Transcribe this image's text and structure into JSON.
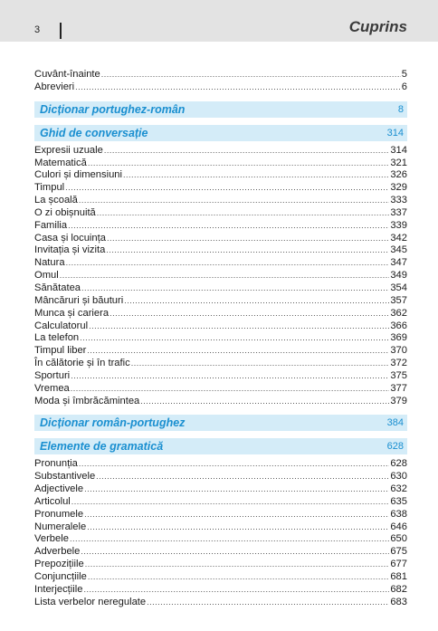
{
  "header": {
    "page_number": "3",
    "title": "Cuprins"
  },
  "toc": [
    {
      "type": "entry",
      "title": "Cuvânt-înainte",
      "page": "5"
    },
    {
      "type": "entry",
      "title": "Abrevieri",
      "page": "6"
    },
    {
      "type": "section",
      "title": "Dicționar portughez-român",
      "page": "8"
    },
    {
      "type": "section",
      "title": "Ghid de conversație",
      "page": "314"
    },
    {
      "type": "entry",
      "title": "Expresii uzuale",
      "page": "314"
    },
    {
      "type": "entry",
      "title": "Matematică",
      "page": "321"
    },
    {
      "type": "entry",
      "title": "Culori și dimensiuni",
      "page": "326"
    },
    {
      "type": "entry",
      "title": "Timpul",
      "page": "329"
    },
    {
      "type": "entry",
      "title": "La școală",
      "page": "333"
    },
    {
      "type": "entry",
      "title": "O zi obișnuită",
      "page": "337"
    },
    {
      "type": "entry",
      "title": "Familia",
      "page": "339"
    },
    {
      "type": "entry",
      "title": "Casa și locuința",
      "page": "342"
    },
    {
      "type": "entry",
      "title": "Invitația și vizita",
      "page": "345"
    },
    {
      "type": "entry",
      "title": "Natura",
      "page": "347"
    },
    {
      "type": "entry",
      "title": "Omul",
      "page": "349"
    },
    {
      "type": "entry",
      "title": "Sănătatea",
      "page": "354"
    },
    {
      "type": "entry",
      "title": "Mâncăruri și băuturi",
      "page": "357"
    },
    {
      "type": "entry",
      "title": "Munca și cariera",
      "page": "362"
    },
    {
      "type": "entry",
      "title": "Calculatorul",
      "page": "366"
    },
    {
      "type": "entry",
      "title": "La telefon",
      "page": "369"
    },
    {
      "type": "entry",
      "title": "Timpul liber",
      "page": "370"
    },
    {
      "type": "entry",
      "title": "În călătorie și în trafic",
      "page": "372"
    },
    {
      "type": "entry",
      "title": "Sporturi",
      "page": "375"
    },
    {
      "type": "entry",
      "title": "Vremea",
      "page": "377"
    },
    {
      "type": "entry",
      "title": "Moda și îmbrăcămintea",
      "page": "379"
    },
    {
      "type": "section",
      "title": "Dicționar român-portughez",
      "page": "384"
    },
    {
      "type": "section",
      "title": "Elemente de gramatică",
      "page": "628"
    },
    {
      "type": "entry",
      "title": "Pronunția",
      "page": "628"
    },
    {
      "type": "entry",
      "title": "Substantivele",
      "page": "630"
    },
    {
      "type": "entry",
      "title": "Adjectivele",
      "page": "632"
    },
    {
      "type": "entry",
      "title": "Articolul",
      "page": "635"
    },
    {
      "type": "entry",
      "title": "Pronumele",
      "page": "638"
    },
    {
      "type": "entry",
      "title": "Numeralele",
      "page": "646"
    },
    {
      "type": "entry",
      "title": "Verbele",
      "page": "650"
    },
    {
      "type": "entry",
      "title": "Adverbele",
      "page": "675"
    },
    {
      "type": "entry",
      "title": "Prepozițiile",
      "page": "677"
    },
    {
      "type": "entry",
      "title": "Conjuncțiile",
      "page": "681"
    },
    {
      "type": "entry",
      "title": "Interjecțiile",
      "page": "682"
    },
    {
      "type": "entry",
      "title": "Lista verbelor neregulate",
      "page": "683"
    }
  ]
}
